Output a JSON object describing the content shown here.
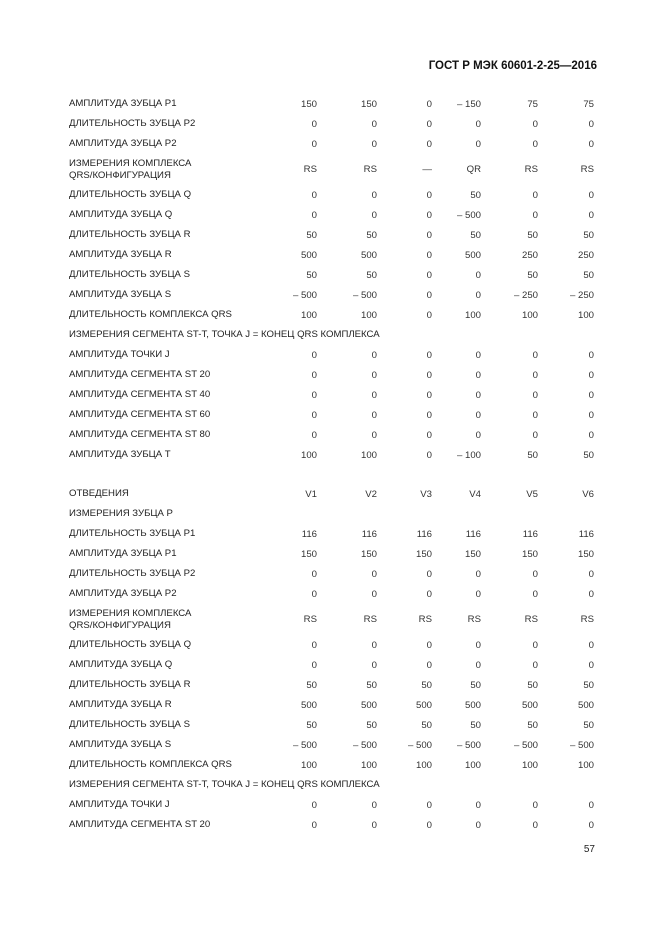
{
  "header": "ГОСТ Р МЭК 60601-2-25—2016",
  "page_number": "57",
  "table1": {
    "rows": [
      {
        "label": "АМПЛИТУДА ЗУБЦА P1",
        "values": [
          "150",
          "150",
          "0",
          "– 150",
          "75",
          "75"
        ]
      },
      {
        "label": "ДЛИТЕЛЬНОСТЬ ЗУБЦА P2",
        "values": [
          "0",
          "0",
          "0",
          "0",
          "0",
          "0"
        ]
      },
      {
        "label": "АМПЛИТУДА ЗУБЦА P2",
        "values": [
          "0",
          "0",
          "0",
          "0",
          "0",
          "0"
        ]
      },
      {
        "label": "ИЗМЕРЕНИЯ КОМПЛЕКСА\nQRS/КОНФИГУРАЦИЯ",
        "values": [
          "RS",
          "RS",
          "—",
          "QR",
          "RS",
          "RS"
        ],
        "tall": true
      },
      {
        "label": "ДЛИТЕЛЬНОСТЬ ЗУБЦА Q",
        "values": [
          "0",
          "0",
          "0",
          "50",
          "0",
          "0"
        ]
      },
      {
        "label": "АМПЛИТУДА ЗУБЦА Q",
        "values": [
          "0",
          "0",
          "0",
          "– 500",
          "0",
          "0"
        ]
      },
      {
        "label": "ДЛИТЕЛЬНОСТЬ ЗУБЦА R",
        "values": [
          "50",
          "50",
          "0",
          "50",
          "50",
          "50"
        ]
      },
      {
        "label": "АМПЛИТУДА ЗУБЦА R",
        "values": [
          "500",
          "500",
          "0",
          "500",
          "250",
          "250"
        ]
      },
      {
        "label": "ДЛИТЕЛЬНОСТЬ ЗУБЦА S",
        "values": [
          "50",
          "50",
          "0",
          "0",
          "50",
          "50"
        ]
      },
      {
        "label": "АМПЛИТУДА ЗУБЦА S",
        "values": [
          "– 500",
          "– 500",
          "0",
          "0",
          "– 250",
          "– 250"
        ]
      },
      {
        "label": "ДЛИТЕЛЬНОСТЬ КОМПЛЕКСА QRS",
        "values": [
          "100",
          "100",
          "0",
          "100",
          "100",
          "100"
        ]
      },
      {
        "label": "ИЗМЕРЕНИЯ СЕГМЕНТА ST-T, ТОЧКА J = КОНЕЦ QRS КОМПЛЕКСА",
        "values": [],
        "full": true
      },
      {
        "label": "АМПЛИТУДА ТОЧКИ J",
        "values": [
          "0",
          "0",
          "0",
          "0",
          "0",
          "0"
        ]
      },
      {
        "label": "АМПЛИТУДА СЕГМЕНТА ST 20",
        "values": [
          "0",
          "0",
          "0",
          "0",
          "0",
          "0"
        ]
      },
      {
        "label": "АМПЛИТУДА СЕГМЕНТА ST 40",
        "values": [
          "0",
          "0",
          "0",
          "0",
          "0",
          "0"
        ]
      },
      {
        "label": "АМПЛИТУДА СЕГМЕНТА ST 60",
        "values": [
          "0",
          "0",
          "0",
          "0",
          "0",
          "0"
        ]
      },
      {
        "label": "АМПЛИТУДА СЕГМЕНТА ST 80",
        "values": [
          "0",
          "0",
          "0",
          "0",
          "0",
          "0"
        ]
      },
      {
        "label": "АМПЛИТУДА ЗУБЦА T",
        "values": [
          "100",
          "100",
          "0",
          "– 100",
          "50",
          "50"
        ]
      }
    ]
  },
  "table2": {
    "rows": [
      {
        "label": "ОТВЕДЕНИЯ",
        "values": [
          "V1",
          "V2",
          "V3",
          "V4",
          "V5",
          "V6"
        ]
      },
      {
        "label": "ИЗМЕРЕНИЯ ЗУБЦА P",
        "values": [],
        "full": true
      },
      {
        "label": "ДЛИТЕЛЬНОСТЬ ЗУБЦА P1",
        "values": [
          "116",
          "116",
          "116",
          "116",
          "116",
          "116"
        ]
      },
      {
        "label": "АМПЛИТУДА ЗУБЦА P1",
        "values": [
          "150",
          "150",
          "150",
          "150",
          "150",
          "150"
        ]
      },
      {
        "label": "ДЛИТЕЛЬНОСТЬ ЗУБЦА P2",
        "values": [
          "0",
          "0",
          "0",
          "0",
          "0",
          "0"
        ]
      },
      {
        "label": "АМПЛИТУДА ЗУБЦА P2",
        "values": [
          "0",
          "0",
          "0",
          "0",
          "0",
          "0"
        ]
      },
      {
        "label": "ИЗМЕРЕНИЯ КОМПЛЕКСА\nQRS/КОНФИГУРАЦИЯ",
        "values": [
          "RS",
          "RS",
          "RS",
          "RS",
          "RS",
          "RS"
        ],
        "tall": true
      },
      {
        "label": "ДЛИТЕЛЬНОСТЬ ЗУБЦА Q",
        "values": [
          "0",
          "0",
          "0",
          "0",
          "0",
          "0"
        ]
      },
      {
        "label": "АМПЛИТУДА ЗУБЦА Q",
        "values": [
          "0",
          "0",
          "0",
          "0",
          "0",
          "0"
        ]
      },
      {
        "label": "ДЛИТЕЛЬНОСТЬ ЗУБЦА R",
        "values": [
          "50",
          "50",
          "50",
          "50",
          "50",
          "50"
        ]
      },
      {
        "label": "АМПЛИТУДА ЗУБЦА R",
        "values": [
          "500",
          "500",
          "500",
          "500",
          "500",
          "500"
        ]
      },
      {
        "label": "ДЛИТЕЛЬНОСТЬ ЗУБЦА S",
        "values": [
          "50",
          "50",
          "50",
          "50",
          "50",
          "50"
        ]
      },
      {
        "label": "АМПЛИТУДА ЗУБЦА S",
        "values": [
          "– 500",
          "– 500",
          "– 500",
          "– 500",
          "– 500",
          "– 500"
        ]
      },
      {
        "label": "ДЛИТЕЛЬНОСТЬ КОМПЛЕКСА QRS",
        "values": [
          "100",
          "100",
          "100",
          "100",
          "100",
          "100"
        ]
      },
      {
        "label": "ИЗМЕРЕНИЯ СЕГМЕНТА ST-T, ТОЧКА J = КОНЕЦ QRS КОМПЛЕКСА",
        "values": [],
        "full": true
      },
      {
        "label": "АМПЛИТУДА ТОЧКИ J",
        "values": [
          "0",
          "0",
          "0",
          "0",
          "0",
          "0"
        ]
      },
      {
        "label": "АМПЛИТУДА СЕГМЕНТА ST 20",
        "values": [
          "0",
          "0",
          "0",
          "0",
          "0",
          "0"
        ]
      }
    ]
  }
}
